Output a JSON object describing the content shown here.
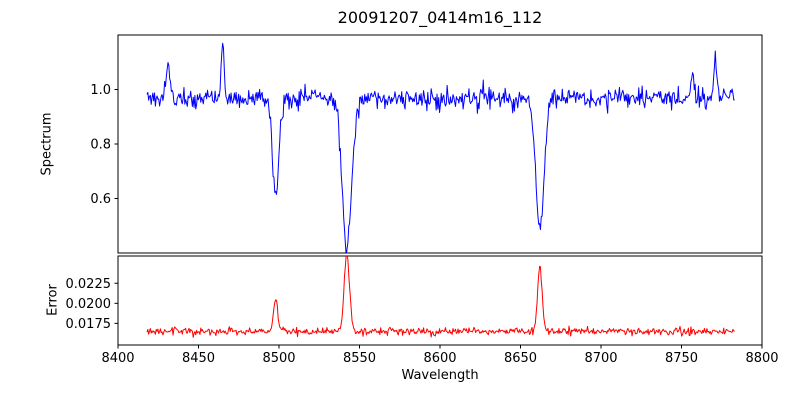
{
  "chart_data": {
    "type": "line",
    "title": "20091207_0414m16_112",
    "xlabel": "Wavelength",
    "x_range_axis": [
      8400,
      8800
    ],
    "x_ticks": [
      8400,
      8450,
      8500,
      8550,
      8600,
      8650,
      8700,
      8750,
      8800
    ],
    "data_x_range": [
      8418,
      8783
    ],
    "grid": false,
    "legend": "none",
    "panels": [
      {
        "name": "spectrum",
        "ylabel": "Spectrum",
        "color": "#0000ff",
        "ylim": [
          0.4,
          1.2
        ],
        "yticks": [
          0.6,
          0.8,
          1.0
        ],
        "ytick_labels": [
          "0.6",
          "0.8",
          "1.0"
        ],
        "continuum": 0.97,
        "noise_sigma": 0.018,
        "absorption_lines": [
          {
            "center": 8498.0,
            "depth": 0.37,
            "width": 2.0
          },
          {
            "center": 8542.1,
            "depth": 0.535,
            "width": 3.0
          },
          {
            "center": 8662.1,
            "depth": 0.48,
            "width": 2.6
          }
        ],
        "emission_spikes": [
          {
            "center": 8431.0,
            "amp": 0.15,
            "width": 0.9
          },
          {
            "center": 8465.0,
            "amp": 0.2,
            "width": 0.9
          },
          {
            "center": 8757.0,
            "amp": 0.09,
            "width": 0.9
          },
          {
            "center": 8771.0,
            "amp": 0.14,
            "width": 0.9
          }
        ]
      },
      {
        "name": "error",
        "ylabel": "Error",
        "color": "#ff0000",
        "ylim": [
          0.0148,
          0.0259
        ],
        "yticks": [
          0.0175,
          0.02,
          0.0225
        ],
        "ytick_labels": [
          "0.0175",
          "0.0200",
          "0.0225"
        ],
        "baseline": 0.0165,
        "noise_sigma": 0.00022,
        "peaks": [
          {
            "center": 8498.0,
            "amp": 0.0038,
            "width": 1.4
          },
          {
            "center": 8542.1,
            "amp": 0.0098,
            "width": 1.6
          },
          {
            "center": 8662.1,
            "amp": 0.0079,
            "width": 1.4
          }
        ]
      }
    ]
  }
}
